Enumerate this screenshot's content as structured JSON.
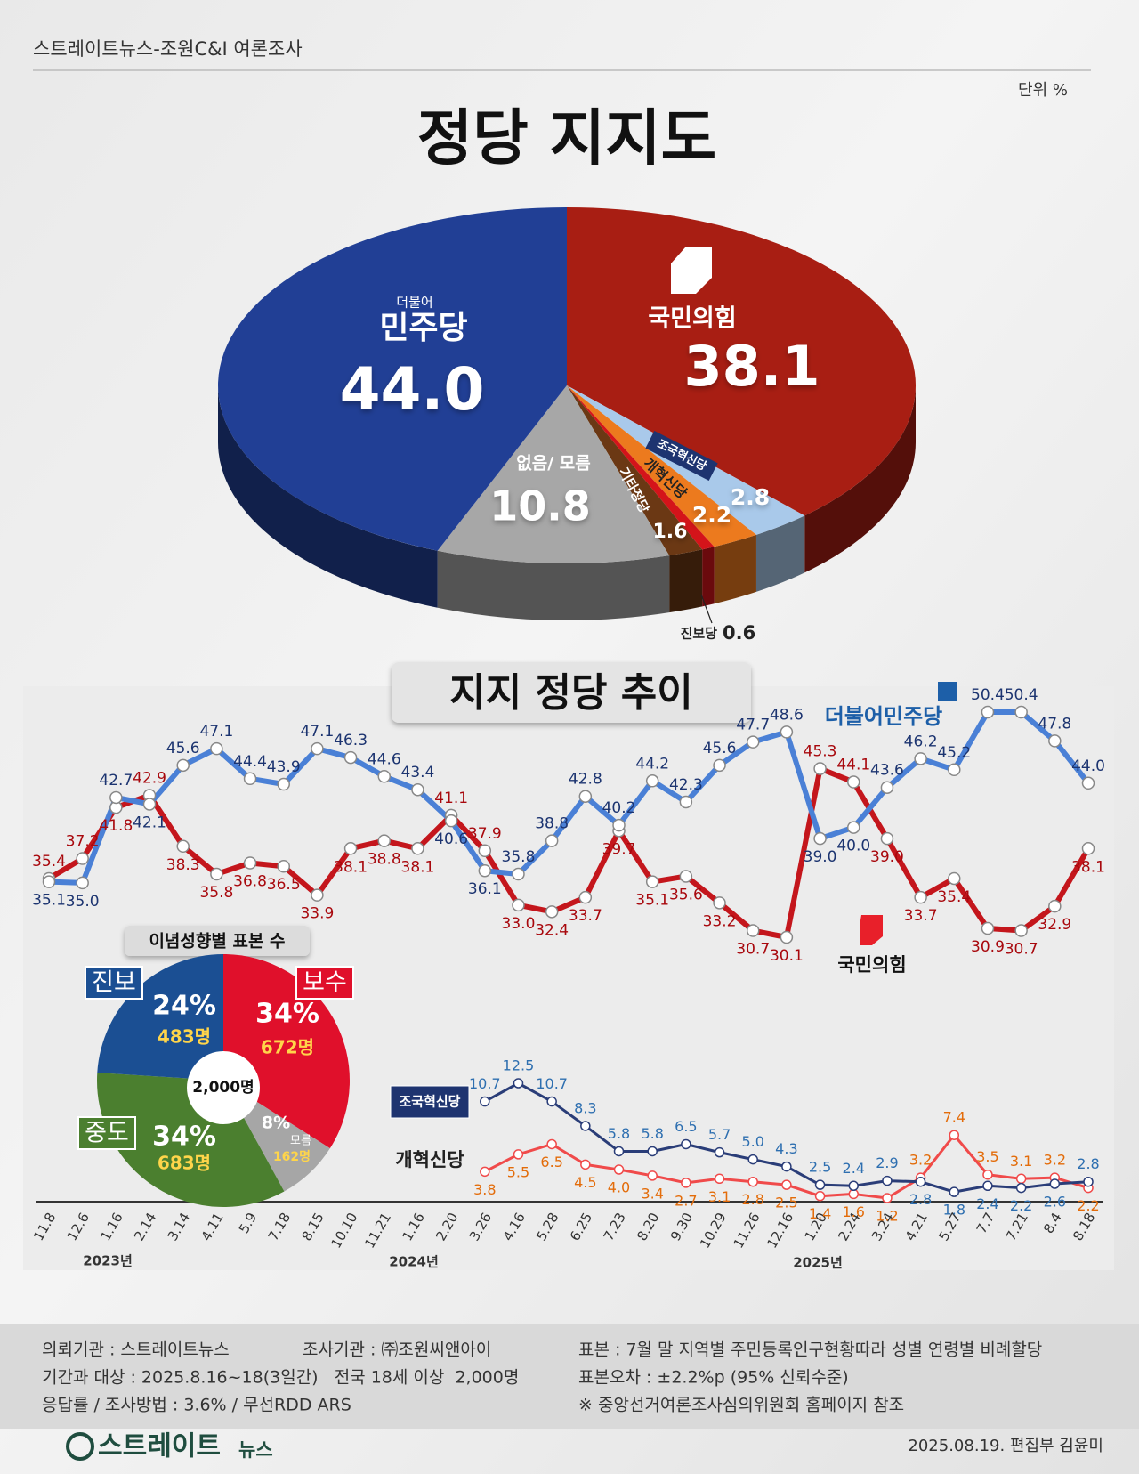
{
  "header": {
    "source": "스트레이트뉴스-조원C&I 여론조사",
    "unit": "단위 %"
  },
  "chart_data": [
    {
      "type": "pie",
      "three_d": true,
      "title": "정당 지지도",
      "categories": [
        "국민의힘",
        "조국혁신당",
        "개혁신당",
        "진보당",
        "기타정당",
        "없음/ 모름",
        "민주당"
      ],
      "values": [
        38.1,
        2.8,
        2.2,
        0.6,
        1.6,
        10.8,
        44.0
      ],
      "value_labels": [
        "38.1",
        "2.8",
        "2.2",
        "0.6",
        "1.6",
        "10.8",
        "44.0"
      ],
      "colors": [
        "#a81e13",
        "#a9c9ea",
        "#ec7a1e",
        "#d4141a",
        "#6b3814",
        "#a7a7a7",
        "#213f95"
      ],
      "annotations": [
        "더불어"
      ]
    },
    {
      "type": "line",
      "title": "지지 정당 추이",
      "categories": [
        "11.8",
        "12.6",
        "1.16",
        "2.14",
        "3.14",
        "4.11",
        "5.9",
        "7.18",
        "8.15",
        "10.10",
        "11.21",
        "1.16",
        "2.20",
        "3.26",
        "4.16",
        "5.28",
        "6.25",
        "7.23",
        "8.20",
        "9.30",
        "10.29",
        "11.26",
        "12.16",
        "1.20",
        "2.24",
        "3.24",
        "4.21",
        "5.27",
        "7.7",
        "7.21",
        "8.4",
        "8.18"
      ],
      "series": [
        {
          "name": "국민의힘",
          "color": "#c4161c",
          "label_color": "#a8080d",
          "values": [
            35.4,
            37.2,
            41.8,
            42.9,
            38.3,
            35.8,
            36.8,
            36.5,
            33.9,
            38.1,
            38.8,
            38.1,
            41.1,
            37.9,
            33.0,
            32.4,
            33.7,
            39.7,
            35.1,
            35.6,
            33.2,
            30.7,
            30.1,
            45.3,
            44.1,
            39.0,
            33.7,
            35.4,
            30.9,
            30.7,
            32.9,
            38.1
          ],
          "value_labels": [
            "35.4",
            "37.2",
            "41.8",
            "42.9",
            "38.3",
            "35.8",
            "36.8",
            "36.5",
            "33.9",
            "38.1",
            "38.8",
            "38.1",
            "41.1",
            "37.9",
            "33.0",
            "32.4",
            "33.7",
            "39.7",
            "35.1",
            "35.6",
            "33.2",
            "30.7",
            "30.1",
            "45.3",
            "44.1",
            "39.0",
            "33.7",
            "35.4",
            "30.9",
            "30.7",
            "32.9",
            "38.1"
          ]
        },
        {
          "name": "더불어민주당",
          "color": "#4a80d6",
          "label_color": "#1c3470",
          "values": [
            35.1,
            35.0,
            42.7,
            42.1,
            45.6,
            47.1,
            44.4,
            43.9,
            47.1,
            46.3,
            44.6,
            43.4,
            40.6,
            36.1,
            35.8,
            38.8,
            42.8,
            40.2,
            44.2,
            42.3,
            45.6,
            47.7,
            48.6,
            39.0,
            40.0,
            43.6,
            46.2,
            45.2,
            50.4,
            50.4,
            47.8,
            44.0
          ],
          "value_labels": [
            "35.1",
            "35.0",
            "42.7",
            "42.1",
            "45.6",
            "47.1",
            "44.4",
            "43.9",
            "47.1",
            "46.3",
            "44.6",
            "43.4",
            "40.6",
            "36.1",
            "35.8",
            "38.8",
            "42.8",
            "40.2",
            "44.2",
            "42.3",
            "45.6",
            "47.7",
            "48.6",
            "39.0",
            "40.0",
            "43.6",
            "46.2",
            "45.2",
            "50.4",
            "50.4",
            "47.8",
            "44.0"
          ]
        },
        {
          "name": "개혁신당",
          "color": "#f04a4a",
          "label_color": "#e36c0a",
          "axis": "y2",
          "values": [
            null,
            null,
            null,
            null,
            null,
            null,
            null,
            null,
            null,
            null,
            null,
            null,
            null,
            3.8,
            5.5,
            6.5,
            4.5,
            4.0,
            3.4,
            2.7,
            3.1,
            2.8,
            2.5,
            1.4,
            1.6,
            1.2,
            3.2,
            7.4,
            3.5,
            3.1,
            3.2,
            2.2
          ],
          "value_labels": [
            null,
            null,
            null,
            null,
            null,
            null,
            null,
            null,
            null,
            null,
            null,
            null,
            null,
            "3.8",
            "5.5",
            "6.5",
            "4.5",
            "4.0",
            "3.4",
            "2.7",
            "3.1",
            "2.8",
            "2.5",
            "1.4",
            "1.6",
            "1.2",
            "3.2",
            "7.4",
            "3.5",
            "3.1",
            "3.2",
            "2.2"
          ]
        },
        {
          "name": "조국혁신당",
          "color": "#2a3d78",
          "label_color": "#2e6fb0",
          "axis": "y2",
          "values": [
            null,
            null,
            null,
            null,
            null,
            null,
            null,
            null,
            null,
            null,
            null,
            null,
            null,
            10.7,
            12.5,
            10.7,
            8.3,
            5.8,
            5.8,
            6.5,
            5.7,
            5.0,
            4.3,
            2.5,
            2.4,
            2.9,
            2.8,
            1.8,
            2.4,
            2.2,
            2.6,
            2.8
          ],
          "value_labels": [
            null,
            null,
            null,
            null,
            null,
            null,
            null,
            null,
            null,
            null,
            null,
            null,
            null,
            "10.7",
            "12.5",
            "10.7",
            "8.3",
            "5.8",
            "5.8",
            "6.5",
            "5.7",
            "5.0",
            "4.3",
            "2.5",
            "2.4",
            "2.9",
            "2.8",
            "1.8",
            "2.4",
            "2.2",
            "2.6",
            "2.8"
          ]
        }
      ],
      "annotations": [
        "2023년",
        "2024년",
        "2025년"
      ]
    },
    {
      "type": "pie",
      "title": "이념성향별 표본 수",
      "categories": [
        "보수",
        "모름",
        "중도",
        "진보"
      ],
      "values": [
        34,
        8,
        34,
        24
      ],
      "value_labels": [
        "34%",
        "8%",
        "34%",
        "24%"
      ],
      "colors": [
        "#e0102b",
        "#a6a6a6",
        "#4b7f2f",
        "#1b4f93"
      ],
      "sample_labels": [
        "672명",
        "162명",
        "683명",
        "483명"
      ],
      "total_label": "2,000명"
    }
  ],
  "footer": {
    "client": "의뢰기관 : 스트레이트뉴스",
    "agency": "조사기관 : ㈜조원씨앤아이",
    "period": "기간과 대상 : 2025.8.16~18(3일간)   전국 18세 이상  2,000명",
    "method": "응답률 / 조사방법 : 3.6% / 무선RDD ARS",
    "sample": "표본 : 7월 말 지역별 주민등록인구현황따라 성별 연령별 비례할당",
    "error": "표본오차 : ±2.2%p (95% 신뢰수준)",
    "note": "※ 중앙선거여론조사심의위원회 홈페이지 참조",
    "logo": "스트레이트",
    "logo_sub": "뉴스",
    "credit": "2025.08.19. 편집부 김윤미"
  }
}
